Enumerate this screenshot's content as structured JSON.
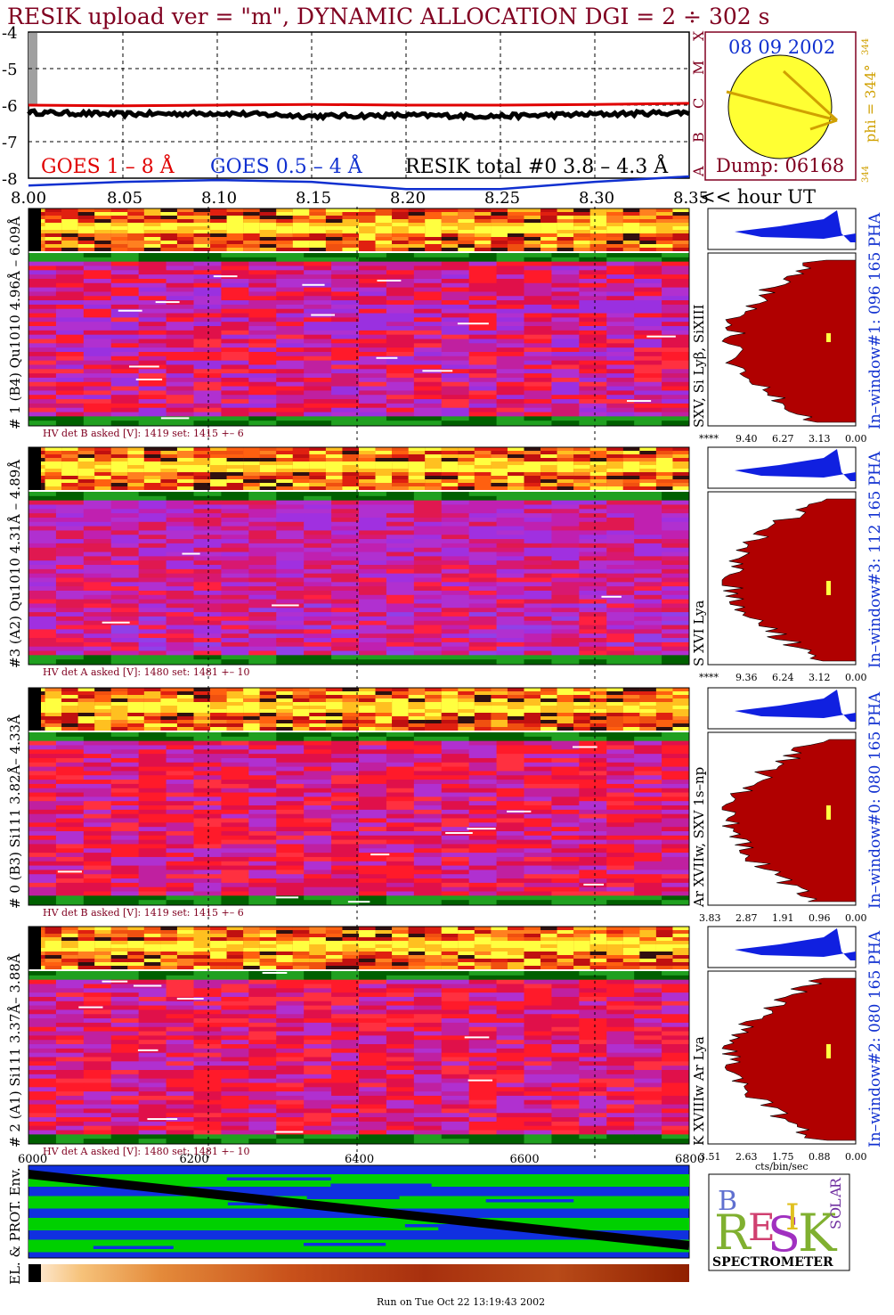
{
  "header": {
    "title": "RESIK upload ver = \"m\", DYNAMIC ALLOCATION  DGI =   2 ÷ 302 s",
    "run_stamp": "Run on Tue Oct 22 13:19:43 2002"
  },
  "colors": {
    "title": "#800020",
    "goes_long": "#e00000",
    "goes_short": "#1030d0",
    "pha_fill": "#b00000",
    "pha_top": "#1020e0",
    "env_green": "#00d000",
    "env_blue": "#1030e0",
    "sun": "#ffff33"
  },
  "sun": {
    "date": "08 09 2002",
    "dump": "Dump: 06168",
    "phi_label": "phi = 344°",
    "phi_sup": "344",
    "phi_bottom": "344",
    "class_letters": [
      "X",
      "M",
      "C",
      "B",
      "A"
    ]
  },
  "chart_data": [
    {
      "type": "line",
      "name": "goes_lightcurve",
      "title": "",
      "xlabel": "<< hour UT",
      "ylabel": "",
      "x_ticks": [
        "8.00",
        "8.05",
        "8.10",
        "8.15",
        "8.20",
        "8.25",
        "8.30",
        "8.35"
      ],
      "y_ticks": [
        "-4",
        "-5",
        "-6",
        "-7",
        "-8"
      ],
      "xlim": [
        8.0,
        8.35
      ],
      "ylim": [
        -8,
        -4
      ],
      "grid": true,
      "legend": [
        "GOES 1 – 8 Å",
        "GOES 0.5 – 4 Å",
        "RESIK total #0  3.8 – 4.3 Å"
      ],
      "series": [
        {
          "name": "GOES 1 – 8 Å",
          "x": [
            8.0,
            8.05,
            8.1,
            8.15,
            8.2,
            8.25,
            8.3,
            8.35
          ],
          "values": [
            -6.0,
            -6.02,
            -6.0,
            -5.98,
            -6.0,
            -6.0,
            -5.98,
            -5.95
          ]
        },
        {
          "name": "GOES 0.5 – 4 Å",
          "x": [
            8.0,
            8.05,
            8.1,
            8.15,
            8.2,
            8.25,
            8.3,
            8.35
          ],
          "values": [
            -8.2,
            -8.1,
            -8.05,
            -8.1,
            -8.3,
            -8.3,
            -8.1,
            -7.95
          ]
        },
        {
          "name": "RESIK total #0  3.8 – 4.3 Å",
          "x": [
            8.0,
            8.05,
            8.1,
            8.15,
            8.2,
            8.25,
            8.3,
            8.35
          ],
          "values": [
            -6.2,
            -6.25,
            -6.22,
            -6.3,
            -6.28,
            -6.3,
            -6.25,
            -6.2
          ]
        }
      ]
    },
    {
      "type": "heatmap",
      "name": "spectrograms",
      "x_ticks": [
        "6000",
        "6200",
        "6400",
        "6600",
        "6800"
      ],
      "panels": [
        {
          "label": "# 1 (B4) Qu1010 4.96Å – 6.09Å",
          "lines": "SXV, Si Lyβ, SiXIII",
          "hv": "HV det B asked [V]:  1419 set:  1415  +–    6",
          "pha_label": "In–window#1:  096 165 PHA",
          "pha_ticks": [
            "****",
            "9.40",
            "6.27",
            "3.13",
            "0.00"
          ]
        },
        {
          "label": "#3 (A2) Qu1010  4.31Å – 4.89Å",
          "lines": "S XVI Lya",
          "hv": "HV det A asked [V]:  1480 set:  1481  +–    10",
          "pha_label": "In–window#3:  112 165 PHA",
          "pha_ticks": [
            "****",
            "9.36",
            "6.24",
            "3.12",
            "0.00"
          ]
        },
        {
          "label": "# 0 (B3) Si111  3.82Å– 4.33Å",
          "lines": "Ar XVIIw,  SXV 1s–np",
          "hv": "HV det B asked [V]:  1419 set:  1415  +–    6",
          "pha_label": "In–window#0:  080 165 PHA",
          "pha_ticks": [
            "3.83",
            "2.87",
            "1.91",
            "0.96",
            "0.00"
          ]
        },
        {
          "label": "# 2 (A1) Si111  3.37Å– 3.88Å",
          "lines": "K XVIIIw  Ar Lya",
          "hv": "HV det A asked [V]:  1480 set:  1481  +–    10",
          "pha_label": "In–window#2:  080 165 PHA",
          "pha_ticks": [
            "3.51",
            "2.63",
            "1.75",
            "0.88",
            "0.00"
          ],
          "pha_xlabel": "cts/bin/sec"
        }
      ]
    }
  ],
  "env": {
    "label": "EL. & PROT. Env."
  },
  "logo": {
    "letters": [
      "B",
      "R",
      "E",
      "S",
      "I",
      "K",
      "S",
      "O",
      "L",
      "A",
      "R"
    ],
    "caption": "SPECTROMETER"
  }
}
